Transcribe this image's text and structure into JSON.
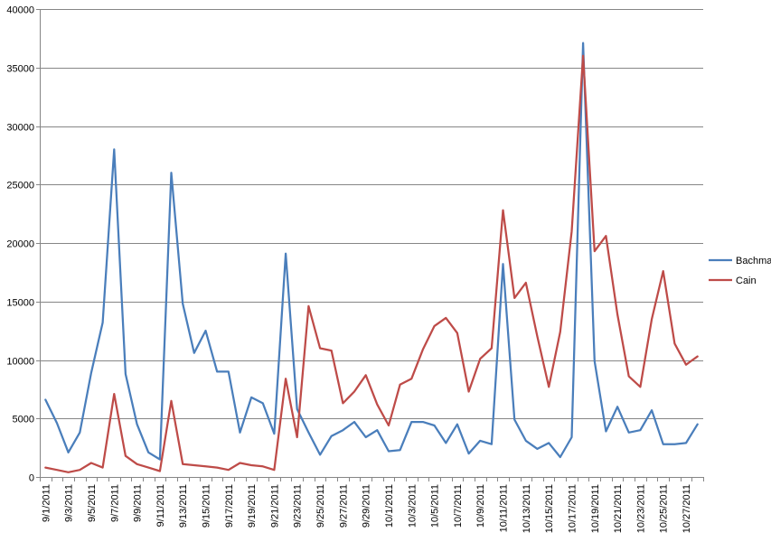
{
  "chart_data": {
    "type": "line",
    "title": "",
    "xlabel": "",
    "ylabel": "",
    "ylim": [
      0,
      40000
    ],
    "yticks": [
      0,
      5000,
      10000,
      15000,
      20000,
      25000,
      30000,
      35000,
      40000
    ],
    "ytick_labels": [
      "0",
      "5000",
      "10000",
      "15000",
      "20000",
      "25000",
      "30000",
      "35000",
      "40000"
    ],
    "x": [
      "9/1/2011",
      "9/2/2011",
      "9/3/2011",
      "9/4/2011",
      "9/5/2011",
      "9/6/2011",
      "9/7/2011",
      "9/8/2011",
      "9/9/2011",
      "9/10/2011",
      "9/11/2011",
      "9/12/2011",
      "9/13/2011",
      "9/14/2011",
      "9/15/2011",
      "9/16/2011",
      "9/17/2011",
      "9/18/2011",
      "9/19/2011",
      "9/20/2011",
      "9/21/2011",
      "9/22/2011",
      "9/23/2011",
      "9/24/2011",
      "9/25/2011",
      "9/26/2011",
      "9/27/2011",
      "9/28/2011",
      "9/29/2011",
      "9/30/2011",
      "10/1/2011",
      "10/2/2011",
      "10/3/2011",
      "10/4/2011",
      "10/5/2011",
      "10/6/2011",
      "10/7/2011",
      "10/8/2011",
      "10/9/2011",
      "10/10/2011",
      "10/11/2011",
      "10/12/2011",
      "10/13/2011",
      "10/14/2011",
      "10/15/2011",
      "10/16/2011",
      "10/17/2011",
      "10/18/2011",
      "10/19/2011",
      "10/20/2011",
      "10/21/2011",
      "10/22/2011",
      "10/23/2011",
      "10/24/2011",
      "10/25/2011",
      "10/26/2011",
      "10/27/2011",
      "10/28/2011"
    ],
    "xtick_labels": [
      "9/1/2011",
      "9/3/2011",
      "9/5/2011",
      "9/7/2011",
      "9/9/2011",
      "9/11/2011",
      "9/13/2011",
      "9/15/2011",
      "9/17/2011",
      "9/19/2011",
      "9/21/2011",
      "9/23/2011",
      "9/25/2011",
      "9/27/2011",
      "9/29/2011",
      "10/1/2011",
      "10/3/2011",
      "10/5/2011",
      "10/7/2011",
      "10/9/2011",
      "10/11/2011",
      "10/13/2011",
      "10/15/2011",
      "10/17/2011",
      "10/19/2011",
      "10/21/2011",
      "10/23/2011",
      "10/25/2011",
      "10/27/2011"
    ],
    "series": [
      {
        "name": "Bachmann",
        "color": "#4a7ebb",
        "values": [
          6600,
          4600,
          2100,
          3800,
          8900,
          13200,
          28000,
          8800,
          4500,
          2100,
          1500,
          26000,
          14800,
          10600,
          12500,
          9000,
          9000,
          3800,
          6800,
          6300,
          3700,
          19100,
          5800,
          3800,
          1900,
          3500,
          4000,
          4700,
          3400,
          4000,
          2200,
          2300,
          4700,
          4700,
          4400,
          2900,
          4500,
          2000,
          3100,
          2800,
          18200,
          4900,
          3100,
          2400,
          2900,
          1700,
          3400,
          37100,
          9900,
          3900,
          6000,
          3800,
          4000,
          5700,
          2800,
          2800,
          2900,
          4500
        ]
      },
      {
        "name": "Cain",
        "color": "#be4b48",
        "values": [
          800,
          600,
          400,
          600,
          1200,
          800,
          7100,
          1800,
          1100,
          800,
          500,
          6500,
          1100,
          1000,
          900,
          800,
          600,
          1200,
          1000,
          900,
          600,
          8400,
          3400,
          14600,
          11000,
          10800,
          6300,
          7300,
          8700,
          6200,
          4400,
          7900,
          8400,
          10900,
          12900,
          13600,
          12300,
          7300,
          10100,
          11000,
          22800,
          15300,
          16600,
          12000,
          7700,
          12400,
          21000,
          36000,
          19300,
          20600,
          13900,
          8600,
          7700,
          13500,
          17600,
          11400,
          9600,
          10300
        ]
      }
    ],
    "legend_position": "right",
    "grid": "horizontal"
  }
}
